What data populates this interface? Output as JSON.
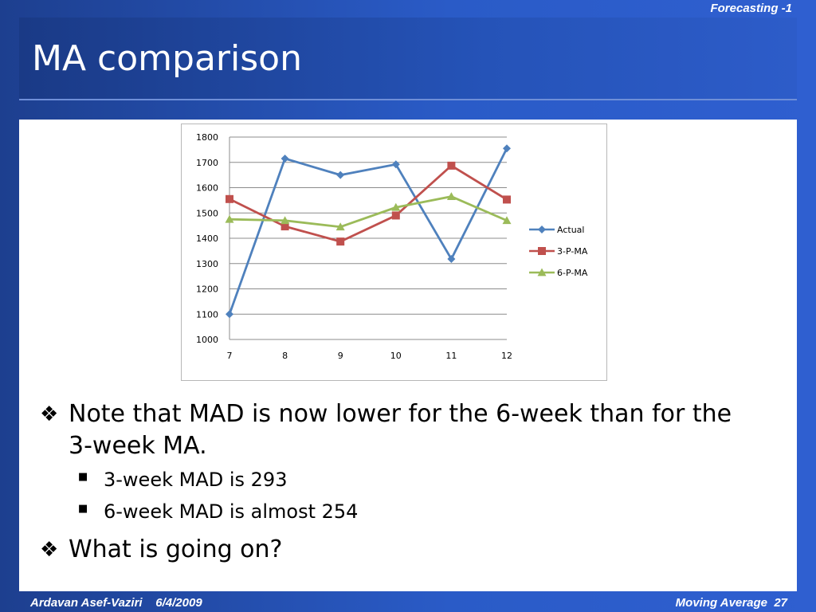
{
  "header": {
    "course": "Forecasting -1"
  },
  "slide": {
    "title": "MA comparison"
  },
  "bullets": {
    "main1": "Note that MAD is now lower for the 6-week than for the 3-week MA.",
    "sub1": "3-week MAD is 293",
    "sub2": "6-week MAD is almost 254",
    "main2": "What is going on?"
  },
  "footer": {
    "author": "Ardavan Asef-Vaziri",
    "date": "6/4/2009",
    "topic": "Moving Average",
    "page": "27"
  },
  "chart_data": {
    "type": "line",
    "x": [
      7,
      8,
      9,
      10,
      11,
      12
    ],
    "ylim": [
      1000,
      1800
    ],
    "yticks": [
      1000,
      1100,
      1200,
      1300,
      1400,
      1500,
      1600,
      1700,
      1800
    ],
    "grid": true,
    "legend_position": "right",
    "series": [
      {
        "name": "Actual",
        "color": "#4f81bd",
        "marker": "diamond",
        "values": [
          1100,
          1715,
          1650,
          1692,
          1318,
          1755
        ]
      },
      {
        "name": "3-P-MA",
        "color": "#c0504d",
        "marker": "square",
        "values": [
          1555,
          1447,
          1387,
          1490,
          1687,
          1553
        ]
      },
      {
        "name": "6-P-MA",
        "color": "#9bbb59",
        "marker": "triangle",
        "values": [
          1475,
          1470,
          1445,
          1522,
          1565,
          1470
        ]
      }
    ]
  }
}
